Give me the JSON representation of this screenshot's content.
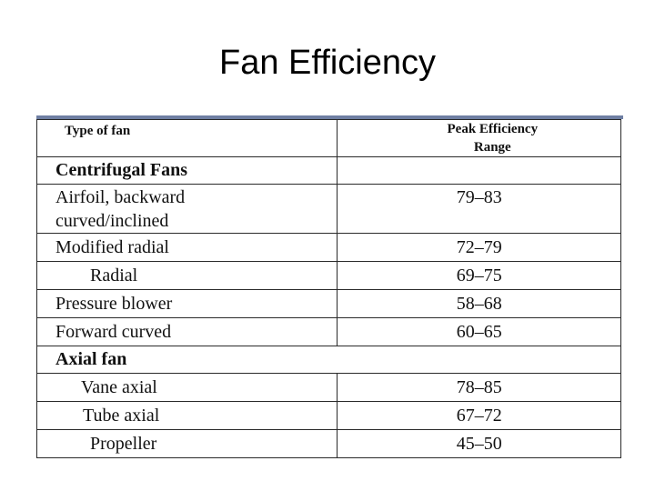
{
  "slide": {
    "title": "Fan Efficiency"
  },
  "table": {
    "header": {
      "col1": "Type of fan",
      "col2_line1": "Peak Efficiency",
      "col2_line2": "Range"
    },
    "sections": [
      {
        "name": "Centrifugal Fans",
        "rows": [
          {
            "type_line1": "Airfoil, backward",
            "type_line2": "curved/inclined",
            "range": "79–83"
          },
          {
            "type": "Modified radial",
            "range": "72–79"
          },
          {
            "type": "Radial",
            "range": "69–75"
          },
          {
            "type": "Pressure blower",
            "range": "58–68"
          },
          {
            "type": "Forward curved",
            "range": "60–65"
          }
        ]
      },
      {
        "name": "Axial fan",
        "rows": [
          {
            "type": "Vane axial",
            "range": "78–85"
          },
          {
            "type": "Tube axial",
            "range": "67–72"
          },
          {
            "type": "Propeller",
            "range": "45–50"
          }
        ]
      }
    ]
  }
}
